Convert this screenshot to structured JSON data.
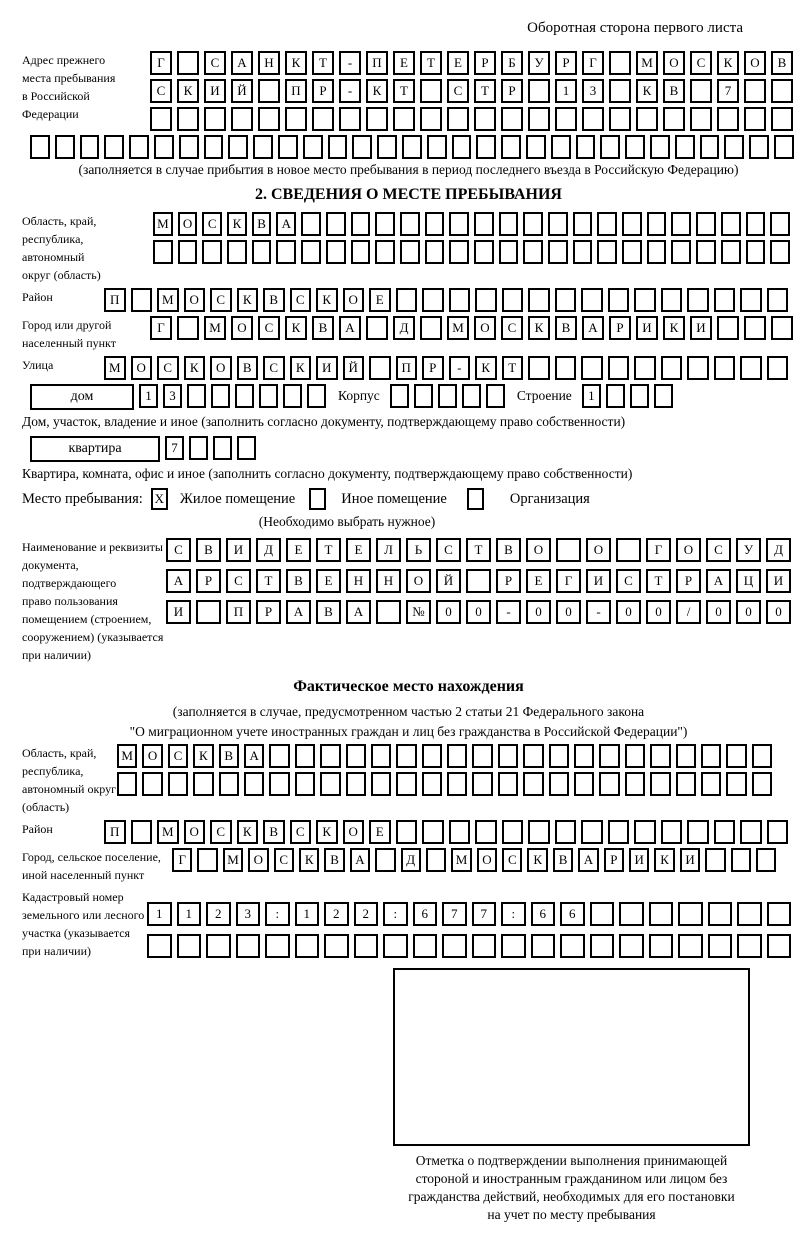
{
  "header": {
    "title": "Оборотная сторона первого листа"
  },
  "prev_address": {
    "label": [
      "Адрес прежнего",
      "места пребывания",
      "в Российской",
      "Федерации"
    ],
    "rows": [
      {
        "cells": "Г САНКТ-ПЕТЕРБУРГ МОСКОВ",
        "len": 24
      },
      {
        "cells": "СКИЙ ПР-КТ СТР 13 КВ 7",
        "len": 24
      },
      {
        "cells": "",
        "len": 24
      }
    ],
    "overflow_row": {
      "cells": "",
      "len": 31
    },
    "caption": "(заполняется в случае прибытия в новое место пребывания в период последнего въезда в Российскую Федерацию)"
  },
  "section2": {
    "title": "2. СВЕДЕНИЯ О МЕСТЕ ПРЕБЫВАНИЯ",
    "oblast": {
      "label": [
        "Область, край,",
        "республика,",
        "автономный",
        "округ (область)"
      ],
      "rows": [
        {
          "cells": "МОСКВА",
          "len": 26
        },
        {
          "cells": "",
          "len": 26
        }
      ]
    },
    "raion": {
      "label": "Район",
      "row": {
        "cells": "П МОСКВСКОЕ",
        "len": 26
      }
    },
    "gorod": {
      "label": [
        "Город или другой",
        "населенный пункт"
      ],
      "row": {
        "cells": "Г МОСКВА Д МОСКВАРИКИ",
        "len": 24
      }
    },
    "ulitsa": {
      "label": "Улица",
      "row": {
        "cells": "МОСКОВСКИЙ ПР-КТ",
        "len": 26
      }
    },
    "dom": {
      "label": "дом",
      "cells": {
        "cells": "13",
        "len": 8
      },
      "korpus_label": "Корпус",
      "korpus": {
        "cells": "",
        "len": 5
      },
      "stroenie_label": "Строение",
      "stroenie": {
        "cells": "1",
        "len": 4
      },
      "caption": "Дом, участок, владение и иное (заполнить согласно документу, подтверждающему право собственности)"
    },
    "kvartira": {
      "label": "квартира",
      "cells": {
        "cells": "7",
        "len": 4
      },
      "caption": "Квартира, комната, офис и иное (заполнить согласно документу, подтверждающему право собственности)"
    },
    "mesto": {
      "label": "Место пребывания:",
      "options": [
        {
          "mark": "X",
          "label": "Жилое помещение"
        },
        {
          "mark": "",
          "label": "Иное помещение"
        },
        {
          "mark": "",
          "label": "Организация"
        }
      ],
      "note": "(Необходимо выбрать нужное)"
    },
    "doc": {
      "label": [
        "Наименование и реквизиты",
        "документа, подтверждающего",
        "право пользования",
        "помещением (строением,",
        "сооружением) (указывается",
        "при наличии)"
      ],
      "rows": [
        {
          "cells": "СВИДЕТЕЛЬСТВО О ГОСУД",
          "len": 21
        },
        {
          "cells": "АРСТВЕННОЙ РЕГИСТРАЦИ",
          "len": 21
        },
        {
          "cells": "И ПРАВА №00-00-00/000",
          "len": 21
        }
      ]
    }
  },
  "fact": {
    "title": "Фактическое место нахождения",
    "captions": [
      "(заполняется в случае, предусмотренном частью 2 статьи 21 Федерального закона",
      "\"О миграционном учете иностранных граждан и лиц без гражданства в Российской Федерации\")"
    ],
    "oblast": {
      "label": [
        "Область, край,",
        "республика,",
        "автономный округ",
        "(область)"
      ],
      "rows": [
        {
          "cells": "МОСКВА",
          "len": 26
        },
        {
          "cells": "",
          "len": 26
        }
      ]
    },
    "raion": {
      "label": "Район",
      "row": {
        "cells": "П МОСКВСКОЕ",
        "len": 26
      }
    },
    "gorod": {
      "label": [
        "Город, сельское поселение,",
        "иной населенный пункт"
      ],
      "row": {
        "cells": "Г МОСКВА Д МОСКВАРИКИ",
        "len": 24
      }
    },
    "kadastr": {
      "label": [
        "Кадастровый номер",
        "земельного или лесного",
        "участка (указывается",
        "при наличии)"
      ],
      "rows": [
        {
          "cells": "1123:122:677:66",
          "len": 22
        },
        {
          "cells": "",
          "len": 22
        }
      ]
    }
  },
  "stamp": {
    "caption": [
      "Отметка о подтверждении выполнения принимающей",
      "стороной и иностранным гражданином или лицом без",
      "гражданства действий, необходимых для его постановки",
      "на учет по месту пребывания"
    ]
  }
}
